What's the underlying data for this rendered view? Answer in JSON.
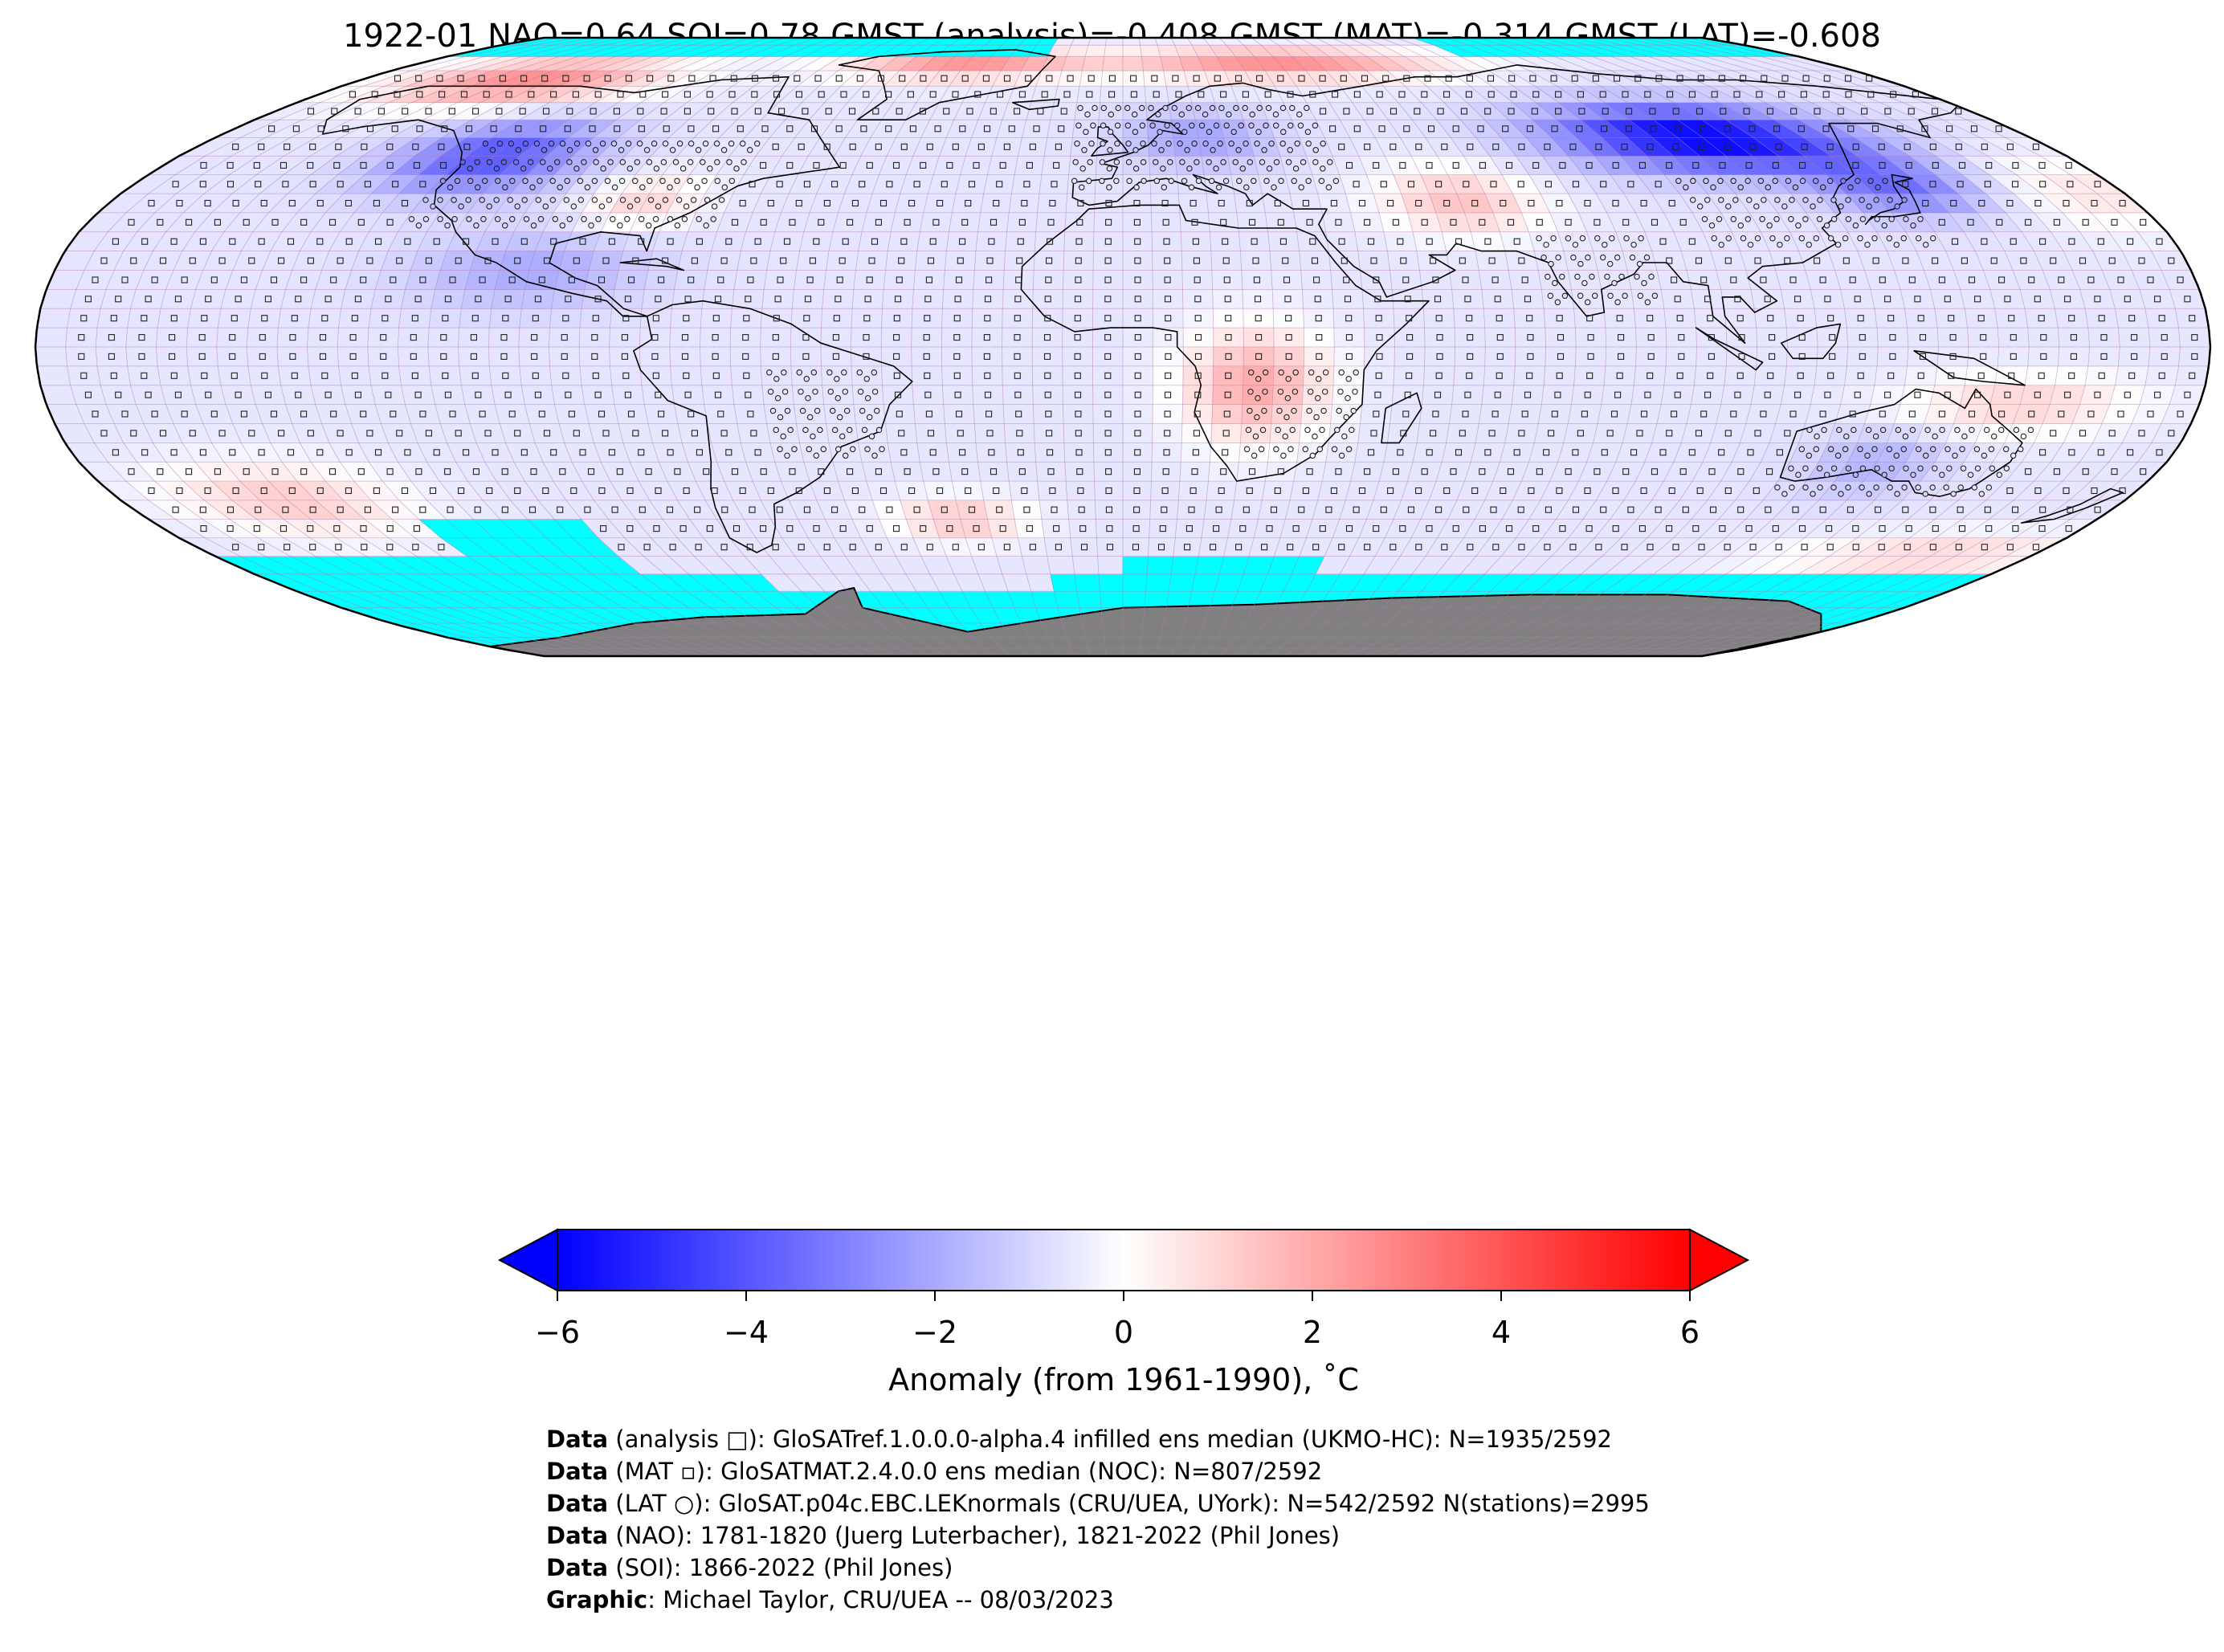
{
  "title": "1922-01 NAO=0.64 SOI=0.78 GMST (analysis)=-0.408 GMST (MAT)=-0.314 GMST (LAT)=-0.608",
  "colorbar": {
    "label": "Anomaly (from 1961-1990), ˚C",
    "ticks": [
      "−6",
      "−4",
      "−2",
      "0",
      "2",
      "4",
      "6"
    ],
    "range": [
      -6,
      6
    ],
    "colors": {
      "min": "#0000ff",
      "mid": "#ffffff",
      "max": "#ff0000"
    }
  },
  "map": {
    "projection": "Robinson",
    "colors": {
      "no_data": "#00ffff",
      "antarctica": "#808080",
      "coastline": "#000000",
      "grid": "#b07ab0"
    },
    "markers": {
      "analysis": "square",
      "mat": "small-square",
      "lat": "circle"
    }
  },
  "footer": [
    {
      "key": "Data",
      "text": " (analysis □): GloSATref.1.0.0.0-alpha.4 infilled ens median (UKMO-HC): N=1935/2592"
    },
    {
      "key": "Data",
      "text": " (MAT ▫): GloSATMAT.2.4.0.0 ens median (NOC): N=807/2592"
    },
    {
      "key": "Data",
      "text": " (LAT ○): GloSAT.p04c.EBC.LEKnormals (CRU/UEA, UYork): N=542/2592 N(stations)=2995"
    },
    {
      "key": "Data",
      "text": " (NAO): 1781-1820 (Juerg Luterbacher), 1821-2022 (Phil Jones)"
    },
    {
      "key": "Data",
      "text": " (SOI): 1866-2022 (Phil Jones)"
    },
    {
      "key": "Graphic",
      "text": ": Michael Taylor, CRU/UEA -- 08/03/2023"
    }
  ]
}
